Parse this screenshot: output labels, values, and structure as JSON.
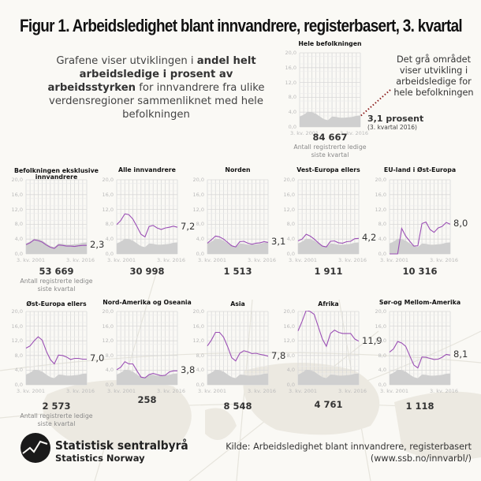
{
  "title": "Figur 1. Arbeidsledighet blant innvandrere, registerbasert, 3. kvartal",
  "intro": {
    "part1": "Grafene viser utviklingen i ",
    "bold": "andel helt arbeidsledige i prosent av arbeidsstyrken",
    "part2": " for innvandrere fra ulike verdensregioner sammenliknet med hele befolkningen"
  },
  "annotation": "Det grå området viser utvikling i arbeidsledige for hele befolkningen",
  "hele": {
    "title": "Hele befolkningen",
    "value_label": "3,1 prosent",
    "value_sub": "(3. kvartal 2016)",
    "count": "84 667",
    "count_sub": "Antall registrerte ledige siste kvartal"
  },
  "axis": {
    "y_ticks": [
      "20,0",
      "16,0",
      "12,0",
      "8,0",
      "4,0",
      "0,0"
    ],
    "x_start": "3. kv. 2001",
    "x_end": "3. kv. 2016"
  },
  "count_sub": "Antall registrerte ledige siste kvartal",
  "colors": {
    "line": "#9b4fb5",
    "area": "#cfcfcf",
    "grid": "#d9d9d9",
    "annotation_dots": "#8b1a1a"
  },
  "footer": {
    "logo_name": "Statistisk sentralbyrå",
    "logo_sub": "Statistics Norway",
    "source_line1": "Kilde: Arbeidsledighet blant innvandrere, registerbasert",
    "source_line2": "(www.ssb.no/innvarbl/)"
  },
  "chart_data": {
    "type": "line",
    "title": "Arbeidsledighet blant innvandrere, registerbasert, 3. kvartal",
    "x": [
      "2001",
      "2002",
      "2003",
      "2004",
      "2005",
      "2006",
      "2007",
      "2008",
      "2009",
      "2010",
      "2011",
      "2012",
      "2013",
      "2014",
      "2015",
      "2016"
    ],
    "xlabel": "",
    "ylabel": "Prosent av arbeidsstyrken",
    "ylim": [
      0,
      20
    ],
    "y_ticks": [
      0,
      4,
      8,
      12,
      16,
      20
    ],
    "grid": true,
    "reference_series": {
      "name": "Hele befolkningen",
      "values": [
        2.8,
        3.3,
        4.1,
        4.0,
        3.6,
        2.8,
        2.1,
        1.8,
        2.8,
        2.7,
        2.5,
        2.5,
        2.6,
        2.7,
        3.0,
        3.1
      ],
      "style": "area"
    },
    "series": [
      {
        "name": "Befolkningen eksklusive innvandrere",
        "values": [
          2.5,
          3.0,
          3.8,
          3.6,
          3.2,
          2.4,
          1.8,
          1.5,
          2.4,
          2.3,
          2.1,
          2.1,
          2.0,
          2.2,
          2.3,
          2.3
        ],
        "last_label": "2,3",
        "count": "53 669"
      },
      {
        "name": "Alle innvandrere",
        "values": [
          7.9,
          9.0,
          10.8,
          10.6,
          9.4,
          7.4,
          5.3,
          4.6,
          7.4,
          7.7,
          7.0,
          6.6,
          7.0,
          7.2,
          7.5,
          7.2
        ],
        "last_label": "7,2",
        "count": "30 998"
      },
      {
        "name": "Norden",
        "values": [
          2.9,
          3.8,
          4.8,
          4.6,
          4.0,
          3.1,
          2.2,
          1.9,
          3.3,
          3.4,
          2.9,
          2.6,
          2.9,
          3.0,
          3.3,
          3.1
        ],
        "last_label": "3,1",
        "count": "1 513"
      },
      {
        "name": "Vest-Europa ellers",
        "values": [
          3.5,
          4.0,
          5.3,
          4.8,
          4.0,
          3.0,
          2.1,
          1.9,
          3.4,
          3.5,
          3.0,
          2.9,
          3.3,
          3.4,
          4.1,
          4.2
        ],
        "last_label": "4,2",
        "count": "1 911"
      },
      {
        "name": "EU-land i Øst-Europa",
        "values": [
          0,
          0,
          0,
          6.9,
          4.8,
          3.4,
          2.1,
          2.2,
          8.2,
          8.6,
          6.6,
          5.8,
          7.0,
          7.4,
          8.5,
          8.0
        ],
        "last_label": "8,0",
        "count": "10 316"
      },
      {
        "name": "Øst-Europa ellers",
        "values": [
          10.0,
          10.6,
          12.0,
          13.1,
          12.2,
          9.2,
          6.9,
          5.7,
          8.1,
          8.0,
          7.6,
          6.9,
          7.2,
          7.2,
          7.0,
          7.0
        ],
        "last_label": "7,0",
        "count": "2 573"
      },
      {
        "name": "Nord-Amerika og Oseania",
        "values": [
          4.1,
          4.8,
          6.3,
          5.7,
          5.7,
          3.8,
          2.1,
          1.9,
          2.8,
          3.1,
          2.8,
          2.5,
          2.6,
          3.5,
          3.8,
          3.8
        ],
        "last_label": "3,8",
        "count": "258"
      },
      {
        "name": "Asia",
        "values": [
          10.6,
          12.2,
          14.3,
          14.3,
          13.0,
          10.4,
          7.4,
          6.5,
          8.6,
          9.3,
          9.0,
          8.5,
          8.6,
          8.3,
          8.1,
          7.8
        ],
        "last_label": "7,8",
        "count": "8 548"
      },
      {
        "name": "Afrika",
        "values": [
          14.7,
          17.3,
          20.3,
          20.0,
          19.2,
          15.8,
          12.5,
          10.5,
          14.0,
          14.9,
          14.3,
          14.0,
          14.0,
          14.0,
          12.5,
          11.9
        ],
        "last_label": "11,9",
        "count": "4 761"
      },
      {
        "name": "Sør-og Mellom-Amerika",
        "values": [
          8.9,
          9.8,
          11.8,
          11.4,
          10.5,
          7.9,
          5.4,
          4.6,
          7.6,
          7.5,
          7.2,
          6.9,
          7.0,
          7.5,
          8.3,
          8.1
        ],
        "last_label": "8,1",
        "count": "1 118"
      }
    ]
  }
}
